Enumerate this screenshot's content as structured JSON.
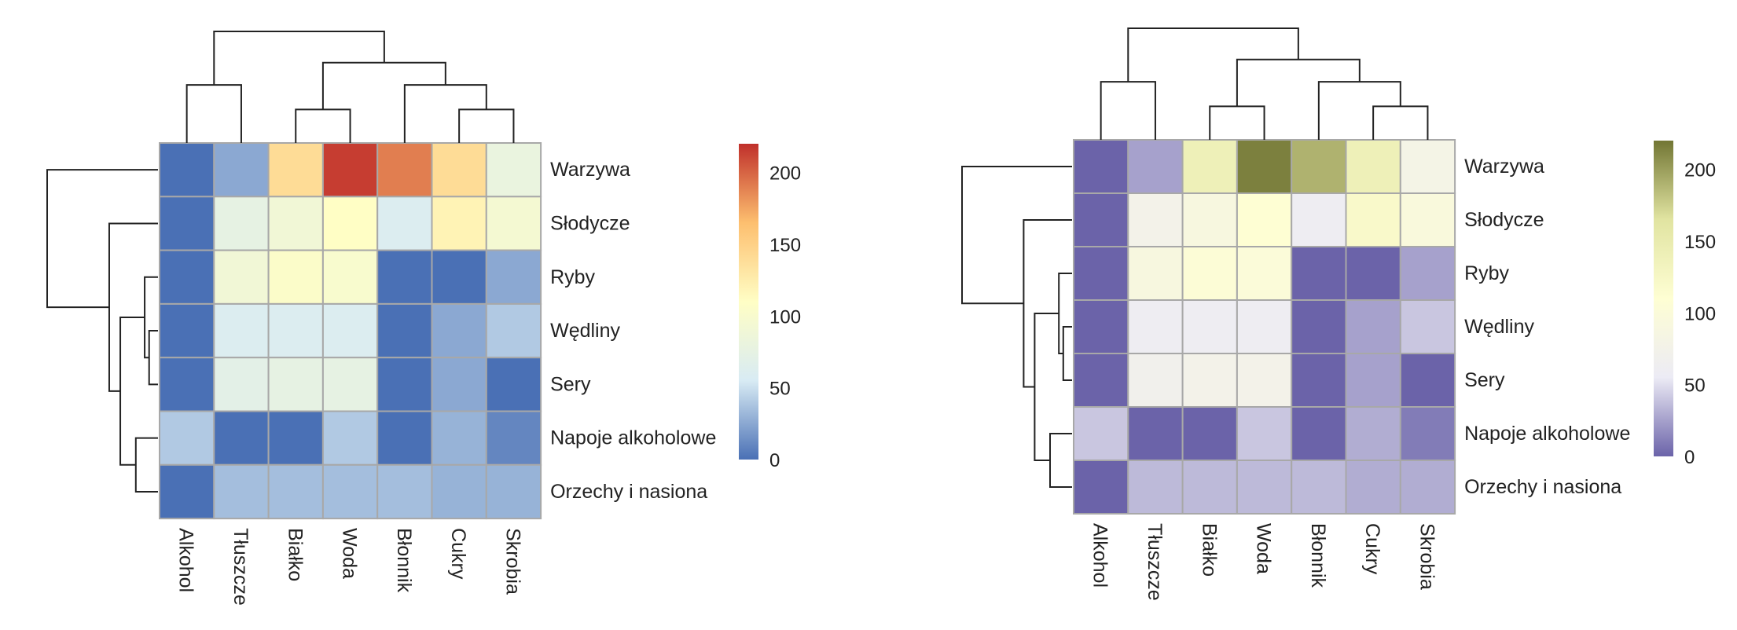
{
  "chart_data": [
    {
      "type": "heatmap",
      "title": "",
      "rows": [
        "Warzywa",
        "Słodycze",
        "Ryby",
        "Wędliny",
        "Sery",
        "Napoje alkoholowe",
        "Orzechy i nasiona"
      ],
      "columns": [
        "Alkohol",
        "Tłuszcze",
        "Białko",
        "Woda",
        "Błonnik",
        "Cukry",
        "Skrobia"
      ],
      "values": [
        [
          0,
          25,
          140,
          215,
          190,
          140,
          80
        ],
        [
          0,
          75,
          90,
          110,
          60,
          120,
          95
        ],
        [
          0,
          90,
          105,
          100,
          0,
          0,
          25
        ],
        [
          0,
          60,
          60,
          60,
          0,
          25,
          40
        ],
        [
          0,
          70,
          75,
          75,
          0,
          25,
          0
        ],
        [
          40,
          0,
          0,
          40,
          0,
          30,
          10
        ],
        [
          0,
          35,
          35,
          35,
          35,
          30,
          30
        ]
      ],
      "colorbar": {
        "min": 0,
        "max": 220,
        "ticks": [
          0,
          50,
          100,
          150,
          200
        ]
      },
      "colors": [
        "#4a70b5",
        "#d8ebf4",
        "#fffec5",
        "#fdbf6f",
        "#c0302b"
      ],
      "row_dendrogram": true,
      "column_dendrogram": true,
      "legend_position": "right"
    },
    {
      "type": "heatmap",
      "title": "",
      "rows": [
        "Warzywa",
        "Słodycze",
        "Ryby",
        "Wędliny",
        "Sery",
        "Napoje alkoholowe",
        "Orzechy i nasiona"
      ],
      "columns": [
        "Alkohol",
        "Tłuszcze",
        "Białko",
        "Woda",
        "Błonnik",
        "Cukry",
        "Skrobia"
      ],
      "values": [
        [
          0,
          25,
          140,
          215,
          190,
          140,
          80
        ],
        [
          0,
          75,
          90,
          110,
          60,
          120,
          95
        ],
        [
          0,
          90,
          105,
          100,
          0,
          0,
          25
        ],
        [
          0,
          60,
          60,
          60,
          0,
          25,
          40
        ],
        [
          0,
          70,
          75,
          75,
          0,
          25,
          0
        ],
        [
          40,
          0,
          0,
          40,
          0,
          30,
          10
        ],
        [
          0,
          35,
          35,
          35,
          35,
          30,
          30
        ]
      ],
      "colorbar": {
        "min": 0,
        "max": 220,
        "ticks": [
          0,
          50,
          100,
          150,
          200
        ]
      },
      "colors": [
        "#6b63a9",
        "#ecebf5",
        "#fefed3",
        "#e1e4a1",
        "#727634"
      ],
      "row_dendrogram": true,
      "column_dendrogram": true,
      "legend_position": "right"
    }
  ]
}
